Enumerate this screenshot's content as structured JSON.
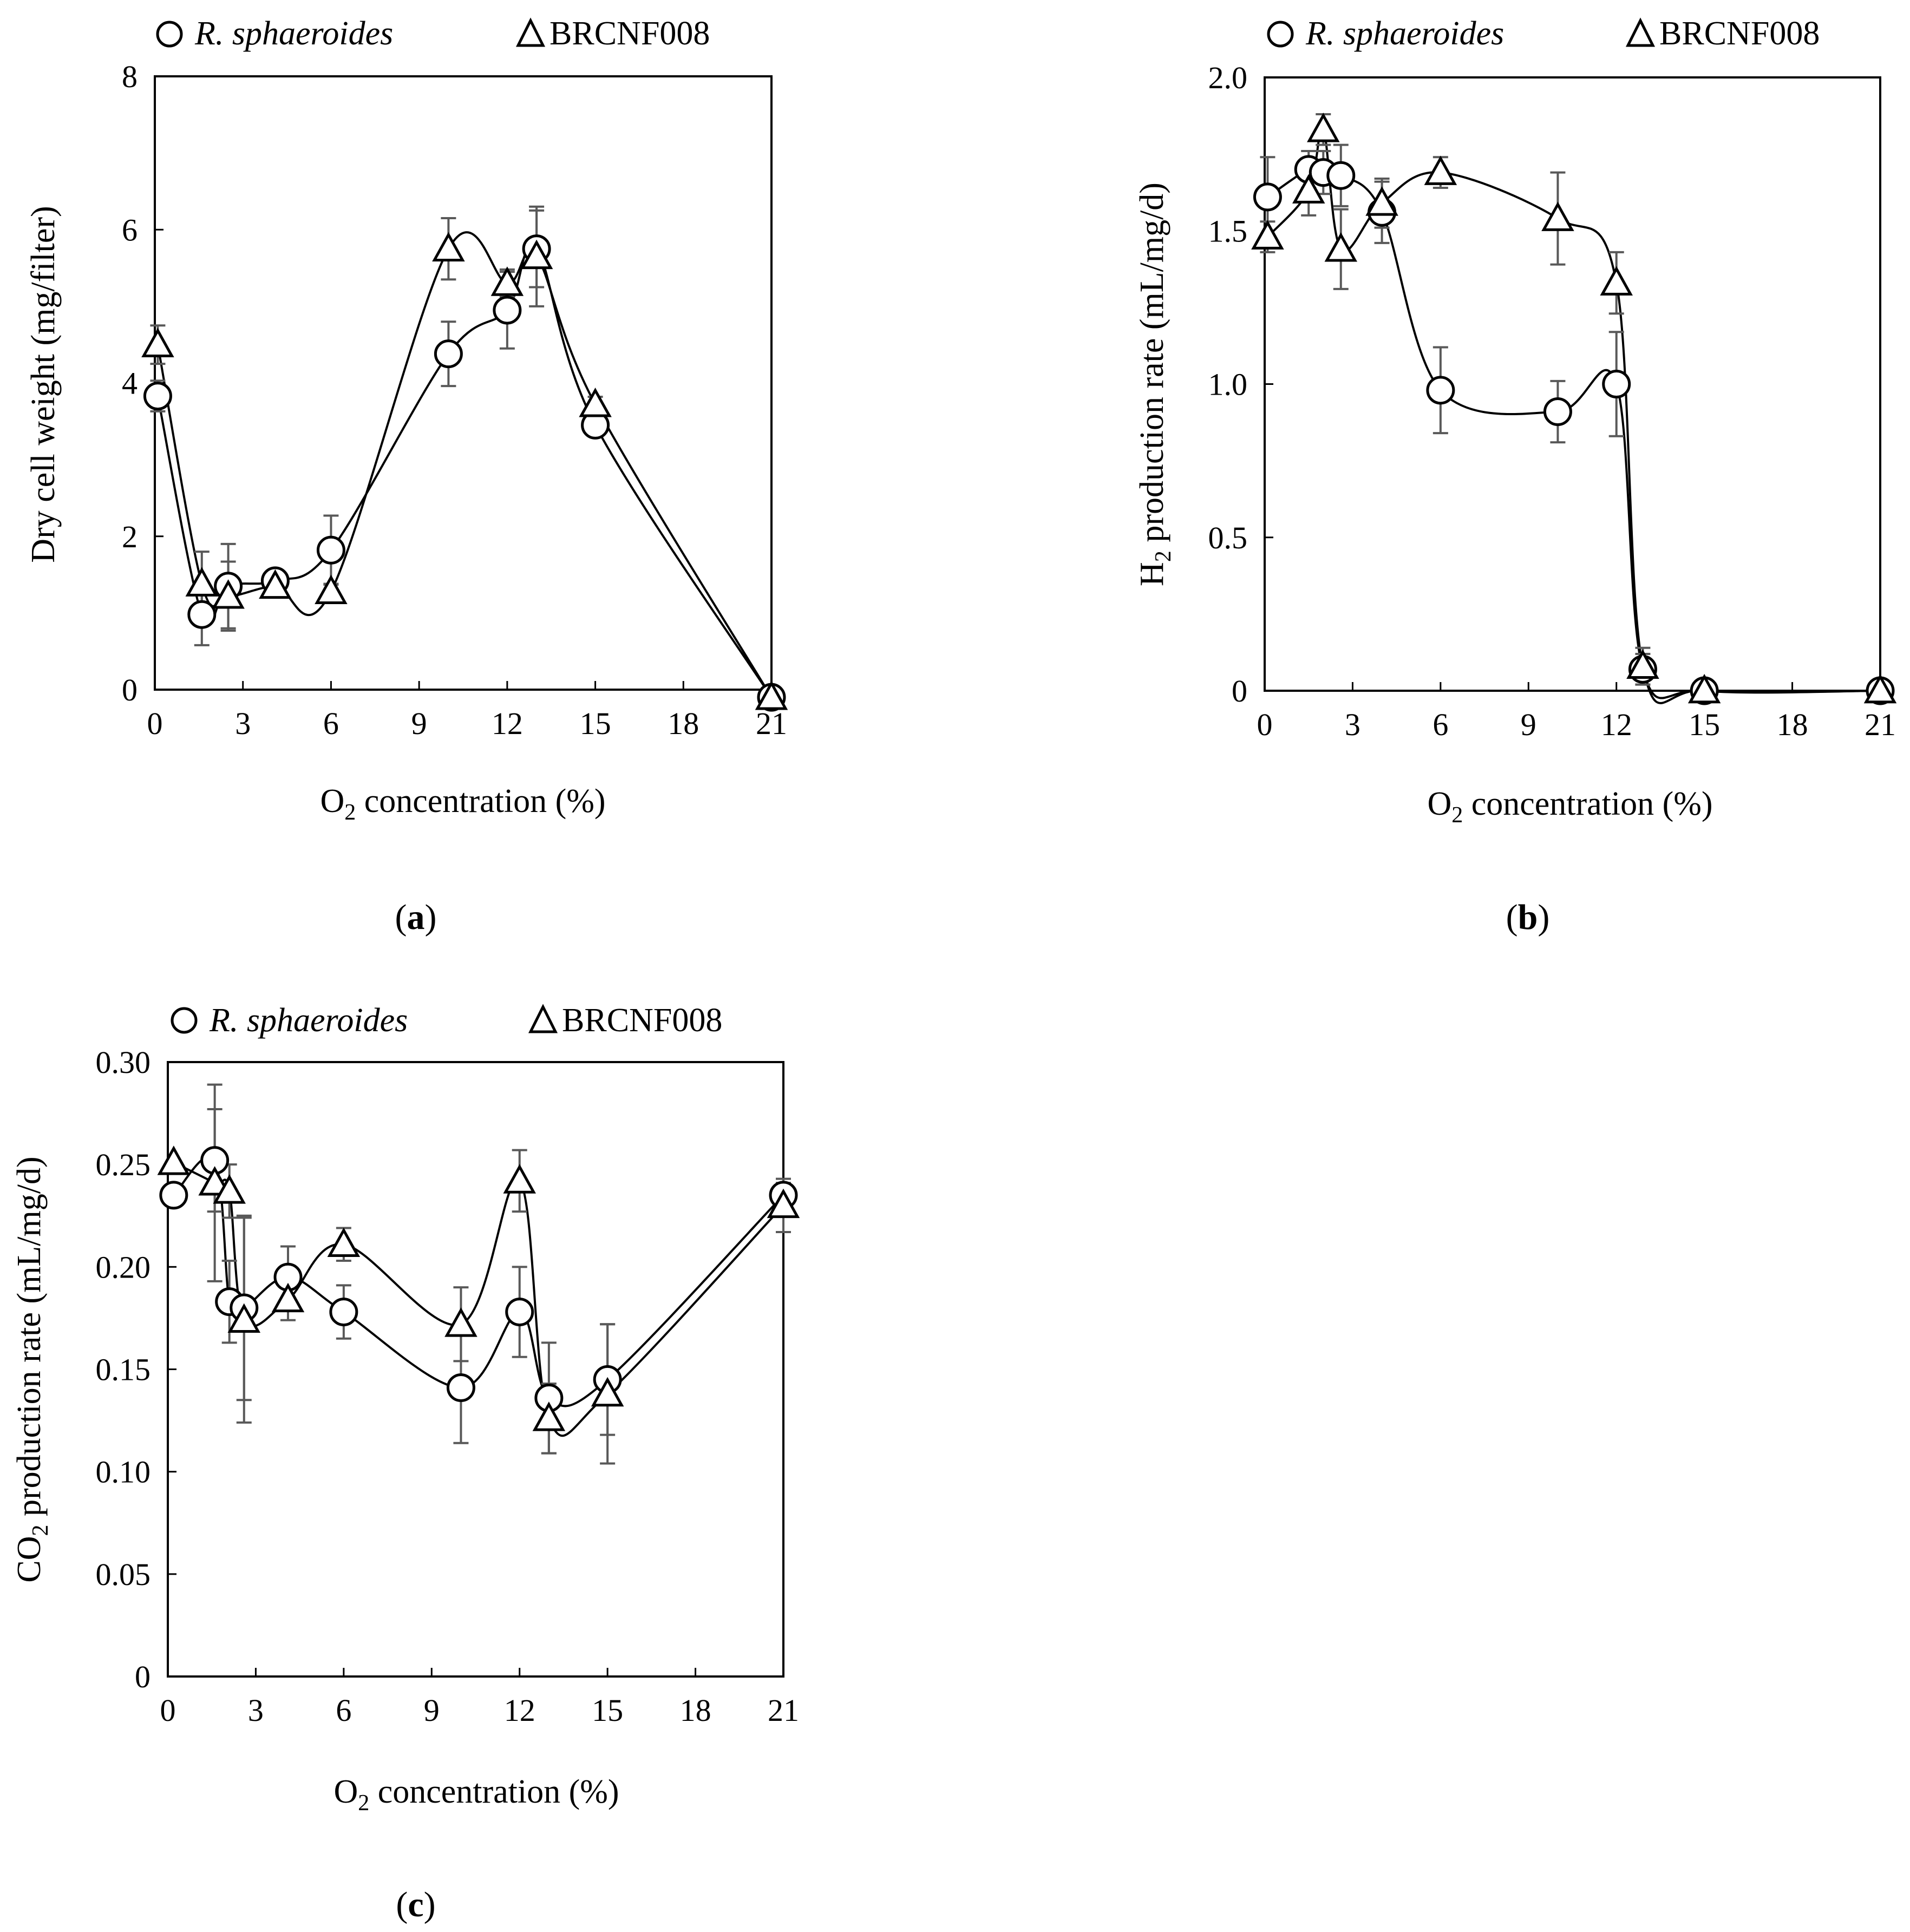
{
  "figure": {
    "legend": {
      "series_a_name": "R. sphaeroides",
      "series_b_name": "BRCNF008"
    }
  },
  "colors": {
    "line": "#000000",
    "errorbar": "#595959",
    "marker_fill": "#ffffff"
  },
  "chart_data": [
    {
      "id": "a",
      "type": "line",
      "panel_label": "a",
      "title": "",
      "xlabel_prefix": "O",
      "xlabel_sub": "2",
      "xlabel_suffix": " concentration (%)",
      "ylabel_prefix": "Dry cell weight  (mg/filter)",
      "ylabel_sub": "",
      "ylabel_suffix": "",
      "xlim": [
        0,
        21
      ],
      "ylim": [
        0,
        8
      ],
      "x_ticks": [
        0,
        3,
        6,
        9,
        12,
        15,
        18,
        21
      ],
      "x_tick_labels": [
        "0",
        "3",
        "6",
        "9",
        "12",
        "15",
        "18",
        "21"
      ],
      "y_ticks": [
        0,
        2,
        4,
        6,
        8
      ],
      "y_tick_labels": [
        "0",
        "2",
        "4",
        "6",
        "8"
      ],
      "grid": false,
      "legend_position": "top",
      "series": [
        {
          "name": "R. sphaeroides",
          "marker": "circle",
          "x": [
            0.1,
            1.6,
            2.5,
            4.1,
            6.0,
            10.0,
            12.0,
            13.0,
            15.0,
            21.0
          ],
          "y": [
            3.83,
            0.98,
            1.35,
            1.42,
            1.82,
            4.38,
            4.95,
            5.75,
            3.45,
            -0.1
          ],
          "err": [
            0.2,
            0.4,
            0.55,
            0.1,
            0.45,
            0.42,
            0.5,
            0.5,
            0.1,
            0.05
          ]
        },
        {
          "name": "BRCNF008",
          "marker": "triangle",
          "x": [
            0.1,
            1.6,
            2.5,
            4.1,
            6.0,
            10.0,
            12.0,
            13.0,
            15.0,
            21.0
          ],
          "y": [
            4.5,
            1.38,
            1.22,
            1.35,
            1.28,
            5.75,
            5.3,
            5.65,
            3.72,
            -0.1
          ],
          "err": [
            0.25,
            0.42,
            0.45,
            0.1,
            0.1,
            0.4,
            0.18,
            0.65,
            0.1,
            0.05
          ]
        }
      ]
    },
    {
      "id": "b",
      "type": "line",
      "panel_label": "b",
      "title": "",
      "xlabel_prefix": "O",
      "xlabel_sub": "2",
      "xlabel_suffix": " concentration (%)",
      "ylabel_prefix": "H",
      "ylabel_sub": "2",
      "ylabel_suffix": " production rate (mL/mg/d)",
      "xlim": [
        0,
        21
      ],
      "ylim": [
        0,
        2.0
      ],
      "x_ticks": [
        0,
        3,
        6,
        9,
        12,
        15,
        18,
        21
      ],
      "x_tick_labels": [
        "0",
        "3",
        "6",
        "9",
        "12",
        "15",
        "18",
        "21"
      ],
      "y_ticks": [
        0,
        0.5,
        1.0,
        1.5,
        2.0
      ],
      "y_tick_labels": [
        "0",
        "0.5",
        "1.0",
        "1.5",
        "2.0"
      ],
      "grid": false,
      "legend_position": "top",
      "series": [
        {
          "name": "R. sphaeroides",
          "marker": "circle",
          "x": [
            0.1,
            1.5,
            2.0,
            2.6,
            4.0,
            6.0,
            10.0,
            12.0,
            12.9,
            15.0,
            21.0
          ],
          "y": [
            1.61,
            1.7,
            1.69,
            1.68,
            1.56,
            0.98,
            0.91,
            1.0,
            0.07,
            0.0,
            0.0
          ],
          "err": [
            0.13,
            0.06,
            0.07,
            0.1,
            0.1,
            0.14,
            0.1,
            0.17,
            0.05,
            0.01,
            0.01
          ]
        },
        {
          "name": "BRCNF008",
          "marker": "triangle",
          "x": [
            0.1,
            1.5,
            2.0,
            2.6,
            4.0,
            6.0,
            10.0,
            12.0,
            12.9,
            15.0,
            21.0
          ],
          "y": [
            1.48,
            1.63,
            1.83,
            1.44,
            1.59,
            1.69,
            1.54,
            1.33,
            0.08,
            0.0,
            0.0
          ],
          "err": [
            0.05,
            0.08,
            0.05,
            0.13,
            0.08,
            0.05,
            0.15,
            0.1,
            0.06,
            0.01,
            0.01
          ]
        }
      ]
    },
    {
      "id": "c",
      "type": "line",
      "panel_label": "c",
      "title": "",
      "xlabel_prefix": "O",
      "xlabel_sub": "2",
      "xlabel_suffix": " concentration (%)",
      "ylabel_prefix": "CO",
      "ylabel_sub": "2",
      "ylabel_suffix": " production rate (mL/mg/d)",
      "xlim": [
        0,
        21
      ],
      "ylim": [
        0,
        0.3
      ],
      "x_ticks": [
        0,
        3,
        6,
        9,
        12,
        15,
        18,
        21
      ],
      "x_tick_labels": [
        "0",
        "3",
        "6",
        "9",
        "12",
        "15",
        "18",
        "21"
      ],
      "y_ticks": [
        0,
        0.05,
        0.1,
        0.15,
        0.2,
        0.25,
        0.3
      ],
      "y_tick_labels": [
        "0",
        "0.05",
        "0.10",
        "0.15",
        "0.20",
        "0.25",
        "0.30"
      ],
      "grid": false,
      "legend_position": "top",
      "series": [
        {
          "name": "R. sphaeroides",
          "marker": "circle",
          "x": [
            0.2,
            1.6,
            2.1,
            2.6,
            4.1,
            6.0,
            10.0,
            12.0,
            13.0,
            15.0,
            21.0
          ],
          "y": [
            0.235,
            0.252,
            0.183,
            0.18,
            0.195,
            0.178,
            0.141,
            0.178,
            0.136,
            0.145,
            0.235
          ],
          "err": [
            0.0,
            0.025,
            0.02,
            0.045,
            0.015,
            0.013,
            0.027,
            0.022,
            0.027,
            0.027,
            0.006
          ]
        },
        {
          "name": "BRCNF008",
          "marker": "triangle",
          "x": [
            0.2,
            1.6,
            2.1,
            2.6,
            4.1,
            6.0,
            10.0,
            12.0,
            13.0,
            15.0,
            21.0
          ],
          "y": [
            0.251,
            0.241,
            0.237,
            0.174,
            0.184,
            0.211,
            0.172,
            0.242,
            0.126,
            0.138,
            0.23
          ],
          "err": [
            0.0,
            0.048,
            0.013,
            0.05,
            0.01,
            0.008,
            0.018,
            0.015,
            0.017,
            0.034,
            0.013
          ]
        }
      ]
    }
  ]
}
